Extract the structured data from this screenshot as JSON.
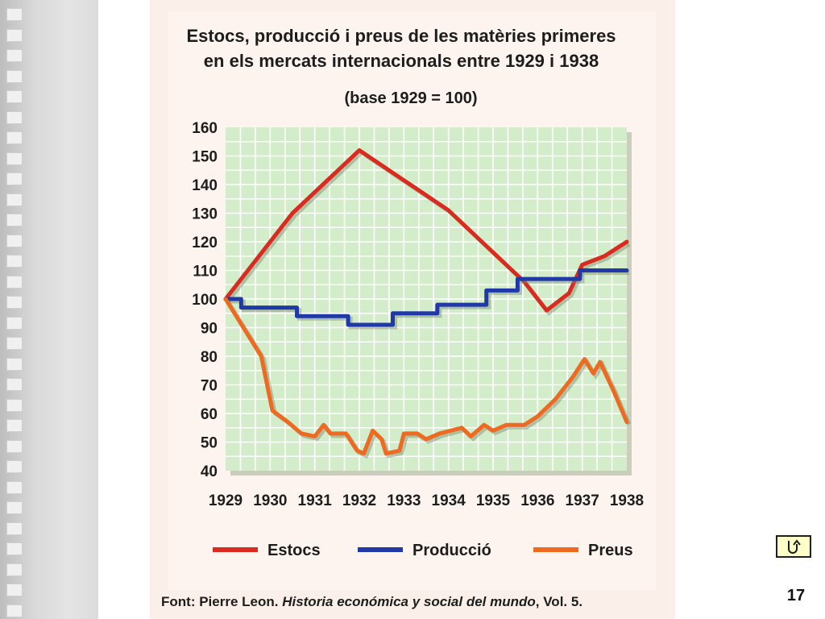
{
  "slide": {
    "page_number": "17",
    "return_button_icon": "return-arrow-icon"
  },
  "chart_data": {
    "type": "line",
    "title_line1": "Estocs, producció i preus de les matèries primeres",
    "title_line2": "en els mercats internacionals entre 1929 i 1938",
    "subtitle": "(base 1929 = 100)",
    "x_ticks": [
      "1929",
      "1930",
      "1931",
      "1932",
      "1933",
      "1934",
      "1935",
      "1936",
      "1937",
      "1938"
    ],
    "y_ticks": [
      160,
      150,
      140,
      130,
      120,
      110,
      100,
      90,
      80,
      70,
      60,
      50,
      40
    ],
    "xlim": [
      1929,
      1938
    ],
    "ylim": [
      40,
      160
    ],
    "grid": true,
    "legend_position": "bottom",
    "series": [
      {
        "name": "Estocs",
        "color": "#d92b1f",
        "step": false,
        "points": [
          [
            1929,
            100
          ],
          [
            1930.5,
            130
          ],
          [
            1932,
            152
          ],
          [
            1934,
            131
          ],
          [
            1935.7,
            106
          ],
          [
            1936.2,
            96
          ],
          [
            1936.7,
            102
          ],
          [
            1937,
            112
          ],
          [
            1937.5,
            115
          ],
          [
            1938,
            120
          ]
        ]
      },
      {
        "name": "Producció",
        "color": "#1f3aa8",
        "step": true,
        "points": [
          [
            1929,
            100
          ],
          [
            1929.35,
            97
          ],
          [
            1930.6,
            94
          ],
          [
            1931.75,
            91
          ],
          [
            1932.75,
            95
          ],
          [
            1933.75,
            98
          ],
          [
            1934.85,
            103
          ],
          [
            1935.55,
            107
          ],
          [
            1936.95,
            110
          ],
          [
            1938,
            110
          ]
        ]
      },
      {
        "name": "Preus",
        "color": "#ee6a21",
        "step": false,
        "points": [
          [
            1929,
            100
          ],
          [
            1929.8,
            80
          ],
          [
            1930.05,
            61
          ],
          [
            1930.4,
            57
          ],
          [
            1930.7,
            53
          ],
          [
            1931,
            52
          ],
          [
            1931.2,
            56
          ],
          [
            1931.35,
            53
          ],
          [
            1931.7,
            53
          ],
          [
            1931.95,
            47
          ],
          [
            1932.1,
            46
          ],
          [
            1932.3,
            54
          ],
          [
            1932.5,
            51
          ],
          [
            1932.6,
            46
          ],
          [
            1932.9,
            47
          ],
          [
            1933,
            53
          ],
          [
            1933.3,
            53
          ],
          [
            1933.5,
            51
          ],
          [
            1933.8,
            53
          ],
          [
            1934.3,
            55
          ],
          [
            1934.5,
            52
          ],
          [
            1934.8,
            56
          ],
          [
            1935,
            54
          ],
          [
            1935.3,
            56
          ],
          [
            1935.7,
            56
          ],
          [
            1936,
            59
          ],
          [
            1936.4,
            65
          ],
          [
            1936.8,
            73
          ],
          [
            1937.05,
            79
          ],
          [
            1937.25,
            74
          ],
          [
            1937.4,
            78
          ],
          [
            1937.7,
            68
          ],
          [
            1938,
            57
          ]
        ]
      }
    ],
    "source_prefix": "Font: Pierre Leon. ",
    "source_italic": "Historia económica y social del mundo",
    "source_suffix": ", Vol. 5."
  }
}
